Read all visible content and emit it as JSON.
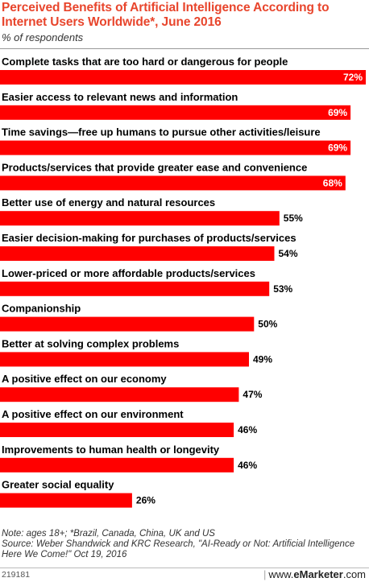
{
  "header": {
    "title": "Perceived Benefits of Artificial Intelligence According to Internet Users Worldwide*, June 2016",
    "subtitle": "% of respondents"
  },
  "colors": {
    "bar": "#ff0000",
    "title": "#e8452c"
  },
  "chart_data": {
    "type": "bar",
    "orientation": "horizontal",
    "categories": [
      "Complete tasks that are too hard or dangerous for people",
      "Easier access to relevant news and information",
      "Time savings—free up humans to pursue other activities/leisure",
      "Products/services that provide greater ease and convenience",
      "Better use of energy and natural resources",
      "Easier decision-making for purchases of products/services",
      "Lower-priced or more affordable products/services",
      "Companionship",
      "Better at solving complex problems",
      "A positive effect on our economy",
      "A positive effect on our environment",
      "Improvements to human health or longevity",
      "Greater social equality"
    ],
    "values": [
      72,
      69,
      69,
      68,
      55,
      54,
      53,
      50,
      49,
      47,
      46,
      46,
      26
    ],
    "labels": [
      "72%",
      "69%",
      "69%",
      "68%",
      "55%",
      "54%",
      "53%",
      "50%",
      "49%",
      "47%",
      "46%",
      "46%",
      "26%"
    ],
    "value_unit": "%",
    "xlim": [
      0,
      72
    ],
    "grid": false,
    "legend": "none"
  },
  "footer": {
    "note": "Note: ages 18+; *Brazil, Canada, China, UK and US",
    "source": "Source: Weber Shandwick and KRC Research, \"AI-Ready or Not: Artificial Intelligence Here We Come!\" Oct 19, 2016",
    "id": "219181",
    "separator": "|",
    "brand_prefix": "www.",
    "brand_name": "eMarketer",
    "brand_suffix": ".com"
  }
}
